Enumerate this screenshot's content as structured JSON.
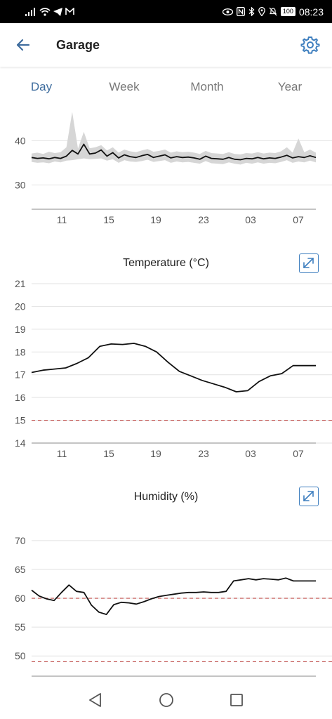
{
  "status_bar": {
    "time": "08:23",
    "battery": "100",
    "icons": [
      "signal-icon",
      "wifi-icon",
      "telegram-icon",
      "gmail-icon",
      "eye-icon",
      "nfc-icon",
      "bluetooth-icon",
      "location-icon",
      "mute-icon",
      "battery-icon"
    ]
  },
  "header": {
    "title": "Garage",
    "back_icon": "arrow-left-icon",
    "settings_icon": "gear-icon"
  },
  "tabs": [
    {
      "label": "Day",
      "active": true
    },
    {
      "label": "Week",
      "active": false
    },
    {
      "label": "Month",
      "active": false
    },
    {
      "label": "Year",
      "active": false
    }
  ],
  "colors": {
    "accent": "#3f6d9e",
    "line": "#111111",
    "band": "#d6d6d6",
    "threshold": "#c0504d",
    "grid": "#e2e2e2"
  },
  "chart_data": [
    {
      "type": "line",
      "title": "",
      "x_ticks": [
        "11",
        "15",
        "19",
        "23",
        "03",
        "07"
      ],
      "y_ticks": [
        30,
        40
      ],
      "ylim": [
        24.5,
        48
      ],
      "x": [
        0,
        0.5,
        1,
        1.5,
        2,
        2.5,
        3,
        3.5,
        4,
        4.5,
        5,
        5.5,
        6,
        6.5,
        7,
        7.5,
        8,
        8.5,
        9,
        9.5,
        10,
        10.5,
        11,
        11.5,
        12,
        12.5,
        13,
        13.5,
        14,
        14.5,
        15,
        15.5,
        16,
        16.5,
        17,
        17.5,
        18,
        18.5,
        19,
        19.5,
        20,
        20.5,
        21,
        21.5,
        22,
        22.5,
        23,
        23.5,
        24,
        24.5
      ],
      "y": [
        36.2,
        36.0,
        36.1,
        35.9,
        36.2,
        36.0,
        36.5,
        37.8,
        37.0,
        39.2,
        37.0,
        37.2,
        37.9,
        36.5,
        37.3,
        36.1,
        36.8,
        36.4,
        36.2,
        36.6,
        36.9,
        36.2,
        36.5,
        36.8,
        36.1,
        36.4,
        36.2,
        36.3,
        36.1,
        35.8,
        36.5,
        36.0,
        35.9,
        35.8,
        36.2,
        35.8,
        35.7,
        36.0,
        35.9,
        36.2,
        35.9,
        36.1,
        36.0,
        36.3,
        36.7,
        36.1,
        36.4,
        36.2,
        36.6,
        36.2
      ],
      "band_low": [
        35.2,
        35.0,
        35.1,
        34.9,
        35.3,
        35.1,
        35.5,
        35.6,
        35.8,
        36.0,
        35.8,
        35.9,
        36.0,
        35.5,
        35.8,
        35.0,
        35.6,
        35.3,
        35.2,
        35.4,
        35.7,
        35.2,
        35.4,
        35.6,
        35.0,
        35.3,
        35.1,
        35.2,
        35.0,
        34.8,
        35.4,
        34.9,
        34.8,
        34.7,
        35.1,
        34.8,
        34.6,
        35.0,
        34.8,
        35.1,
        34.8,
        35.0,
        34.9,
        35.2,
        35.6,
        35.0,
        35.3,
        35.1,
        35.5,
        35.1
      ],
      "band_high": [
        37.1,
        37.3,
        37.0,
        37.5,
        37.2,
        37.4,
        38.5,
        46.5,
        38.2,
        42.0,
        38.3,
        38.5,
        39.0,
        37.8,
        38.5,
        37.3,
        38.0,
        37.6,
        37.4,
        37.8,
        38.1,
        37.5,
        37.7,
        38.0,
        37.3,
        37.6,
        37.4,
        37.5,
        37.3,
        37.0,
        37.7,
        37.2,
        37.1,
        37.0,
        37.4,
        37.0,
        36.9,
        37.2,
        37.1,
        37.4,
        37.1,
        37.3,
        37.2,
        37.6,
        38.5,
        37.3,
        40.5,
        37.4,
        38.0,
        37.3
      ]
    },
    {
      "type": "line",
      "title": "Temperature (°C)",
      "x_ticks": [
        "11",
        "15",
        "19",
        "23",
        "03",
        "07"
      ],
      "y_ticks": [
        14,
        15,
        16,
        17,
        18,
        19,
        20,
        21
      ],
      "ylim": [
        14,
        21
      ],
      "threshold": 15,
      "x": [
        0,
        1,
        2,
        3,
        4,
        5,
        6,
        7,
        8,
        9,
        10,
        11,
        12,
        13,
        14,
        15,
        16,
        17,
        18,
        19,
        20,
        21,
        22,
        23,
        24,
        25
      ],
      "y": [
        17.1,
        17.2,
        17.25,
        17.3,
        17.5,
        17.75,
        18.25,
        18.35,
        18.33,
        18.38,
        18.25,
        18.0,
        17.55,
        17.15,
        16.95,
        16.75,
        16.6,
        16.45,
        16.25,
        16.3,
        16.7,
        16.95,
        17.05,
        17.4,
        17.4,
        17.4
      ]
    },
    {
      "type": "line",
      "title": "Humidity (%)",
      "x_ticks": [],
      "y_ticks": [
        50,
        55,
        60,
        65,
        70
      ],
      "ylim": [
        46.5,
        74
      ],
      "thresholds": [
        60,
        49
      ],
      "x": [
        0,
        1,
        2,
        3,
        4,
        5,
        6,
        7,
        8,
        9,
        10,
        11,
        12,
        13,
        14,
        15,
        16,
        17,
        18,
        19,
        20,
        21,
        22,
        23,
        24,
        25,
        26,
        27,
        28,
        29,
        30,
        31,
        32,
        33,
        34,
        35,
        36,
        37,
        38
      ],
      "y": [
        61.4,
        60.4,
        59.9,
        59.6,
        61.0,
        62.3,
        61.2,
        61.0,
        58.8,
        57.6,
        57.2,
        58.9,
        59.3,
        59.2,
        59.0,
        59.4,
        59.9,
        60.3,
        60.5,
        60.7,
        60.9,
        61.0,
        61.0,
        61.1,
        61.0,
        61.0,
        61.2,
        63.0,
        63.2,
        63.4,
        63.2,
        63.4,
        63.3,
        63.2,
        63.5,
        63.0,
        63.0,
        63.0,
        63.0
      ]
    }
  ]
}
